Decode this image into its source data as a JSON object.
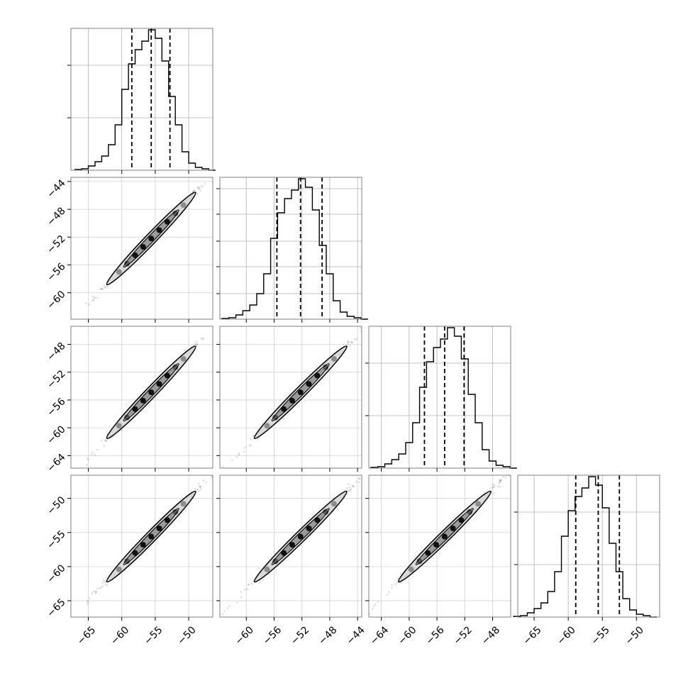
{
  "chart_data": {
    "type": "corner",
    "grid": true,
    "n_params": 4,
    "quantile_lines": "dashed",
    "histograms": [
      {
        "param": 0,
        "bins": [
          -67,
          -66,
          -65,
          -64,
          -63,
          -62,
          -61,
          -60,
          -59,
          -58,
          -57,
          -56,
          -55,
          -54,
          -53,
          -52,
          -51,
          -50,
          -49,
          -48,
          -47,
          -46
        ],
        "counts": [
          0.005,
          0.01,
          0.03,
          0.06,
          0.1,
          0.18,
          0.32,
          0.57,
          0.75,
          0.85,
          0.91,
          0.99,
          0.93,
          0.77,
          0.52,
          0.32,
          0.13,
          0.05,
          0.02,
          0.01,
          0.0
        ],
        "quantiles": [
          -58.5,
          -55.6,
          -52.8
        ],
        "yticks": [
          0.37,
          0.74
        ]
      },
      {
        "param": 1,
        "bins": [
          -63.5,
          -62.5,
          -61.5,
          -60.5,
          -59.5,
          -58.5,
          -57.5,
          -56.5,
          -55.5,
          -54.5,
          -53.5,
          -52.5,
          -51.5,
          -50.5,
          -49.5,
          -48.5,
          -47.5,
          -46.5,
          -45.5,
          -44.5,
          -43.5,
          -42.5
        ],
        "counts": [
          0.005,
          0.01,
          0.03,
          0.06,
          0.1,
          0.18,
          0.32,
          0.57,
          0.75,
          0.85,
          0.91,
          0.99,
          0.93,
          0.77,
          0.52,
          0.32,
          0.13,
          0.05,
          0.02,
          0.01,
          0.0
        ],
        "quantiles": [
          -55.6,
          -52.2,
          -49.1
        ],
        "yticks": [
          0.18,
          0.37,
          0.55,
          0.74,
          0.92
        ]
      },
      {
        "param": 2,
        "bins": [
          -65.5,
          -64.5,
          -63.5,
          -62.5,
          -61.5,
          -60.5,
          -59.5,
          -58.5,
          -57.5,
          -56.5,
          -55.5,
          -54.5,
          -53.5,
          -52.5,
          -51.5,
          -50.5,
          -49.5,
          -48.5,
          -47.5,
          -46.5,
          -45.5,
          -44.5
        ],
        "counts": [
          0.005,
          0.01,
          0.03,
          0.06,
          0.1,
          0.18,
          0.32,
          0.57,
          0.75,
          0.85,
          0.91,
          0.99,
          0.93,
          0.77,
          0.52,
          0.32,
          0.13,
          0.05,
          0.02,
          0.01,
          0.0
        ],
        "quantiles": [
          -57.8,
          -54.9,
          -52.1
        ],
        "yticks": [
          0.37,
          0.74
        ]
      },
      {
        "param": 3,
        "bins": [
          -68,
          -67,
          -66,
          -65,
          -64,
          -63,
          -62,
          -61,
          -60,
          -59,
          -58,
          -57,
          -56,
          -55,
          -54,
          -53,
          -52,
          -51,
          -50,
          -49,
          -48,
          -47
        ],
        "counts": [
          0.005,
          0.01,
          0.03,
          0.06,
          0.1,
          0.18,
          0.32,
          0.57,
          0.75,
          0.85,
          0.91,
          0.99,
          0.93,
          0.77,
          0.52,
          0.32,
          0.13,
          0.05,
          0.02,
          0.01,
          0.0
        ],
        "quantiles": [
          -58.9,
          -55.6,
          -52.5
        ],
        "yticks": [
          0.37,
          0.74
        ]
      }
    ],
    "axes": [
      {
        "param": 0,
        "range": [
          -67.6,
          -46.4
        ],
        "ticks": [
          -65,
          -60,
          -55,
          -50
        ],
        "tick_labels": [
          "−65",
          "−60",
          "−55",
          "−50"
        ]
      },
      {
        "param": 1,
        "range": [
          -63.8,
          -43.4
        ],
        "ticks": [
          -60,
          -56,
          -52,
          -48,
          -44
        ],
        "tick_labels": [
          "−60",
          "−56",
          "−52",
          "−48",
          "−44"
        ]
      },
      {
        "param": 2,
        "range": [
          -65.8,
          -45.4
        ],
        "ticks": [
          -64,
          -60,
          -56,
          -52,
          -48
        ],
        "tick_labels": [
          "−64",
          "−60",
          "−56",
          "−52",
          "−48"
        ]
      },
      {
        "param": 3,
        "range": [
          -67.4,
          -46.6
        ],
        "ticks": [
          -65,
          -60,
          -55,
          -50
        ],
        "tick_labels": [
          "−65",
          "−60",
          "−55",
          "−50"
        ]
      }
    ],
    "pairs": [
      {
        "x": 0,
        "y": 1
      },
      {
        "x": 0,
        "y": 2
      },
      {
        "x": 1,
        "y": 2
      },
      {
        "x": 0,
        "y": 3
      },
      {
        "x": 1,
        "y": 3
      },
      {
        "x": 2,
        "y": 3
      }
    ],
    "pair_samples": {
      "means": [
        -55.6,
        -52.2,
        -54.9,
        -55.6
      ],
      "sigma": 3.4,
      "correlation": 0.995
    }
  }
}
